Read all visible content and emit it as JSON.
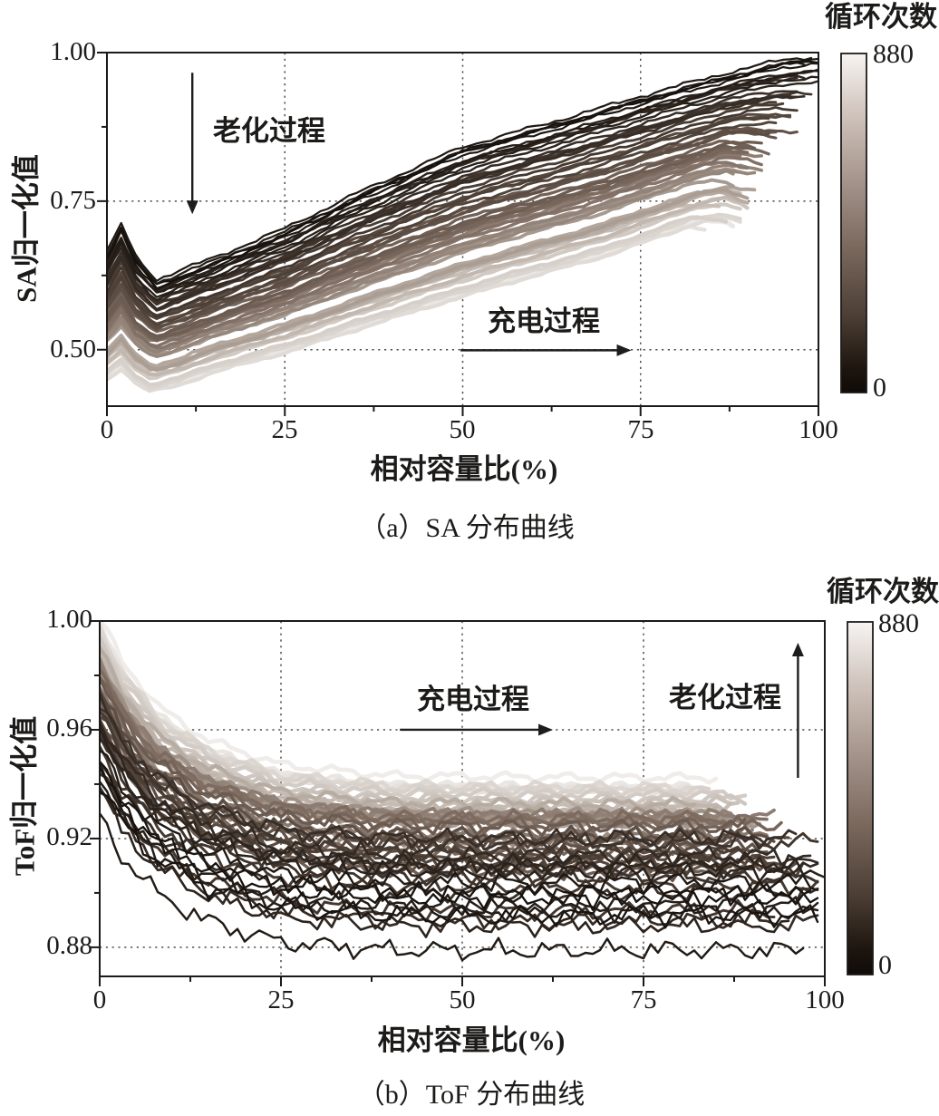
{
  "figure": {
    "background": "#ffffff",
    "line_color_dark": "#17120e",
    "line_color_light": "#efece9",
    "axis_color": "#1a1a1a"
  },
  "chart_data": [
    {
      "type": "line",
      "panel": "a",
      "title": "（a）SA 分布曲线",
      "xlabel": "相对容量比(%)",
      "ylabel": "SA归一化值",
      "xlim": [
        0,
        100
      ],
      "ylim": [
        0.405,
        1.0
      ],
      "xticks": [
        0,
        25,
        50,
        75,
        100
      ],
      "xtick_labels": [
        "0",
        "25",
        "50",
        "75",
        "100"
      ],
      "yticks": [
        1.0,
        0.75,
        0.5
      ],
      "ytick_labels": [
        "1.00",
        "0.75",
        "0.50"
      ],
      "grid": "dotted at major ticks",
      "legend_position": "colorbar-right",
      "n_curves": 58,
      "colorbar": {
        "title": "循环次数",
        "min": 0,
        "max": 880,
        "min_label": "0",
        "max_label": "880"
      },
      "series_envelope": {
        "note": "≈58 charge curves shaded by cycle number 0→880 (dark→light, SA decreases with aging); intermediate cycles interpolate between the two envelopes; higher-cycle curves terminate earlier (x≈87)",
        "cycle_0": {
          "x": [
            0,
            2,
            4,
            7,
            10,
            15,
            25,
            35,
            50,
            65,
            75,
            85,
            95,
            100
          ],
          "y": [
            0.665,
            0.715,
            0.66,
            0.618,
            0.632,
            0.655,
            0.705,
            0.765,
            0.845,
            0.895,
            0.93,
            0.962,
            0.992,
            1.0
          ]
        },
        "cycle_880": {
          "x": [
            0,
            2,
            4,
            6,
            10,
            15,
            25,
            40,
            55,
            70,
            80,
            87
          ],
          "y": [
            0.452,
            0.468,
            0.445,
            0.432,
            0.443,
            0.465,
            0.497,
            0.553,
            0.607,
            0.657,
            0.7,
            0.732
          ]
        }
      },
      "annotations": [
        {
          "text": "老化过程",
          "arrow": "down",
          "arrow_x": 12,
          "arrow_y_from": 0.966,
          "arrow_y_to": 0.728
        },
        {
          "text": "充电过程",
          "arrow": "right",
          "arrow_y": 0.499,
          "arrow_x_from": 49.7,
          "arrow_x_to": 73.7
        }
      ]
    },
    {
      "type": "line",
      "panel": "b",
      "title": "（b）ToF 分布曲线",
      "xlabel": "相对容量比(%)",
      "ylabel": "ToF归一化值",
      "xlim": [
        0,
        100
      ],
      "ylim": [
        0.8693,
        1.0
      ],
      "xticks": [
        0,
        25,
        50,
        75,
        100
      ],
      "xtick_labels": [
        "0",
        "25",
        "50",
        "75",
        "100"
      ],
      "yticks": [
        1.0,
        0.96,
        0.92,
        0.88
      ],
      "ytick_labels": [
        "1.00",
        "0.96",
        "0.92",
        "0.88"
      ],
      "grid": "dotted at major ticks",
      "legend_position": "colorbar-right",
      "n_curves": 62,
      "colorbar": {
        "title": "循环次数",
        "min": 0,
        "max": 880,
        "min_label": "0",
        "max_label": "880"
      },
      "series_envelope": {
        "note": "≈62 ToF curves shaded by cycle number 0→880 (dark→light, ToF plateau rises with aging); all start near 1.00 at x=0 and decay to a plateau by x≈25; cycle_0 is the lowest envelope; higher-cycle curves terminate earlier (x≈84)",
        "cycle_0": {
          "x": [
            0,
            3,
            8,
            15,
            25,
            40,
            60,
            80,
            100
          ],
          "y": [
            0.924,
            0.91,
            0.896,
            0.886,
            0.8785,
            0.8758,
            0.8755,
            0.876,
            0.8757
          ]
        },
        "cycle_880": {
          "x": [
            0,
            3,
            8,
            15,
            25,
            40,
            60,
            80,
            86
          ],
          "y": [
            1.0,
            0.984,
            0.967,
            0.9545,
            0.9455,
            0.9415,
            0.941,
            0.9408,
            0.9408
          ]
        }
      },
      "annotations": [
        {
          "text": "充电过程",
          "arrow": "right",
          "arrow_y": 0.96,
          "arrow_x_from": 41.4,
          "arrow_x_to": 62.5
        },
        {
          "text": "老化过程",
          "arrow": "up",
          "arrow_x": 96.3,
          "arrow_y_from": 0.9423,
          "arrow_y_to": 0.992
        }
      ]
    }
  ]
}
